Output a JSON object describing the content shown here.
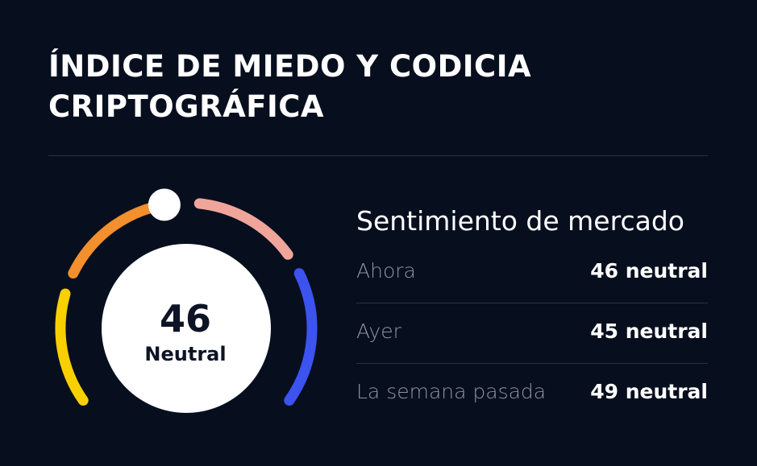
{
  "title": "ÍNDICE DE MIEDO Y CODICIA CRIPTOGRÁFICA",
  "gauge": {
    "value": "46",
    "label": "Neutral",
    "level": 0.46,
    "segment_colors": {
      "extreme_fear": "#f8d000",
      "fear": "#f38f2c",
      "greed": "#f0a59b",
      "extreme_greed": "#3c53f0"
    },
    "pointer_color": "#ffffff"
  },
  "market": {
    "title": "Sentimiento de mercado",
    "rows": [
      {
        "label": "Ahora",
        "value": "46 neutral"
      },
      {
        "label": "Ayer",
        "value": "45 neutral"
      },
      {
        "label": "La semana pasada",
        "value": "49 neutral"
      }
    ]
  },
  "colors": {
    "background": "#070f1f",
    "divider": "#2a3343",
    "muted_text": "#8c93a0"
  }
}
